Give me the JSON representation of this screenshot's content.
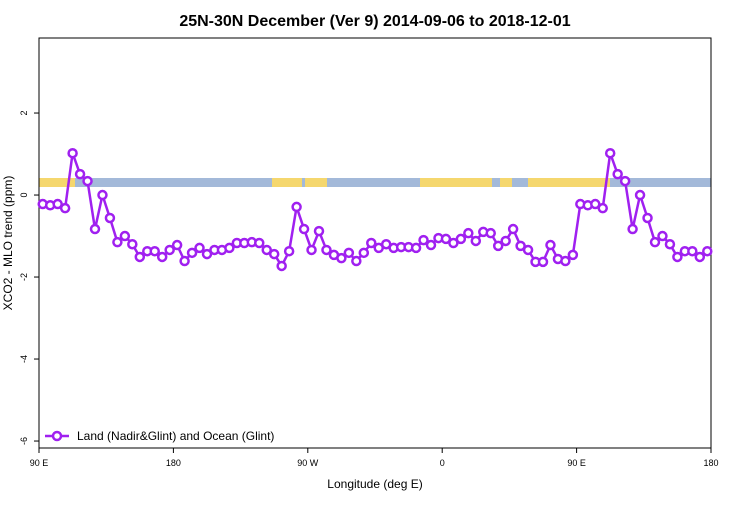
{
  "chart_data": {
    "type": "line",
    "title": "25N-30N December (Ver 9)   2014-09-06 to 2018-12-01",
    "x_label": "Longitude (deg E)",
    "y_label": "XCO2 - MLO trend (ppm)",
    "x": [
      92.5,
      97.5,
      102.5,
      107.5,
      112.5,
      117.5,
      122.5,
      127.5,
      132.5,
      137.5,
      142.5,
      147.5,
      152.5,
      157.5,
      162.5,
      167.5,
      172.5,
      177.5,
      182.5,
      187.5,
      192.5,
      197.5,
      202.5,
      207.5,
      212.5,
      217.5,
      222.5,
      227.5,
      232.5,
      237.5,
      242.5,
      247.5,
      252.5,
      257.5,
      262.5,
      267.5,
      272.5,
      277.5,
      282.5,
      287.5,
      292.5,
      297.5,
      302.5,
      307.5,
      312.5,
      317.5,
      322.5,
      327.5,
      332.5,
      337.5,
      342.5,
      347.5,
      352.5,
      357.5,
      362.5,
      367.5,
      372.5,
      377.5,
      382.5,
      387.5,
      392.5,
      397.5,
      402.5,
      407.5,
      412.5,
      417.5,
      422.5,
      427.5,
      432.5,
      437.5,
      442.5,
      447.5,
      452.5,
      457.5,
      462.5,
      467.5,
      472.5,
      477.5,
      482.5,
      487.5,
      492.5,
      497.5,
      502.5,
      507.5,
      512.5,
      517.5,
      522.5,
      527.5,
      532.5,
      537.5
    ],
    "series": [
      {
        "name": "Land (Nadir&Glint) and Ocean (Glint)",
        "color": "#a020f0",
        "values": [
          -0.22,
          -0.25,
          -0.22,
          -0.32,
          1.02,
          0.51,
          0.34,
          -0.83,
          0.0,
          -0.56,
          -1.15,
          -1.0,
          -1.2,
          -1.51,
          -1.37,
          -1.37,
          -1.51,
          -1.34,
          -1.22,
          -1.61,
          -1.41,
          -1.29,
          -1.44,
          -1.34,
          -1.34,
          -1.29,
          -1.17,
          -1.17,
          -1.15,
          -1.17,
          -1.34,
          -1.44,
          -1.73,
          -1.37,
          -0.29,
          -0.83,
          -1.34,
          -0.88,
          -1.34,
          -1.46,
          -1.54,
          -1.41,
          -1.61,
          -1.41,
          -1.17,
          -1.29,
          -1.2,
          -1.29,
          -1.27,
          -1.27,
          -1.29,
          -1.1,
          -1.22,
          -1.05,
          -1.07,
          -1.17,
          -1.07,
          -0.93,
          -1.12,
          -0.9,
          -0.93,
          -1.24,
          -1.12,
          -0.83,
          -1.24,
          -1.34,
          -1.63,
          -1.63,
          -1.22,
          -1.56,
          -1.61,
          -1.46,
          -0.22,
          -0.25,
          -0.22,
          -0.32,
          1.02,
          0.51,
          0.34,
          -0.83,
          0.0,
          -0.56,
          -1.15,
          -1.0,
          -1.2,
          -1.51,
          -1.37,
          -1.37,
          -1.51,
          -1.37
        ]
      }
    ],
    "xlim": [
      90,
      540
    ],
    "ylim": [
      -6.17,
      3.83
    ],
    "xticks": [
      {
        "value": 90,
        "label": "90 E"
      },
      180,
      {
        "value": 270,
        "label": "90 W"
      },
      {
        "value": 360,
        "label": "0"
      },
      {
        "value": 450,
        "label": "90 E"
      },
      {
        "value": 540,
        "label": "180"
      }
    ],
    "yticks": [
      -6,
      -4,
      -2,
      0,
      2
    ],
    "legend_position": "bottom-left"
  }
}
